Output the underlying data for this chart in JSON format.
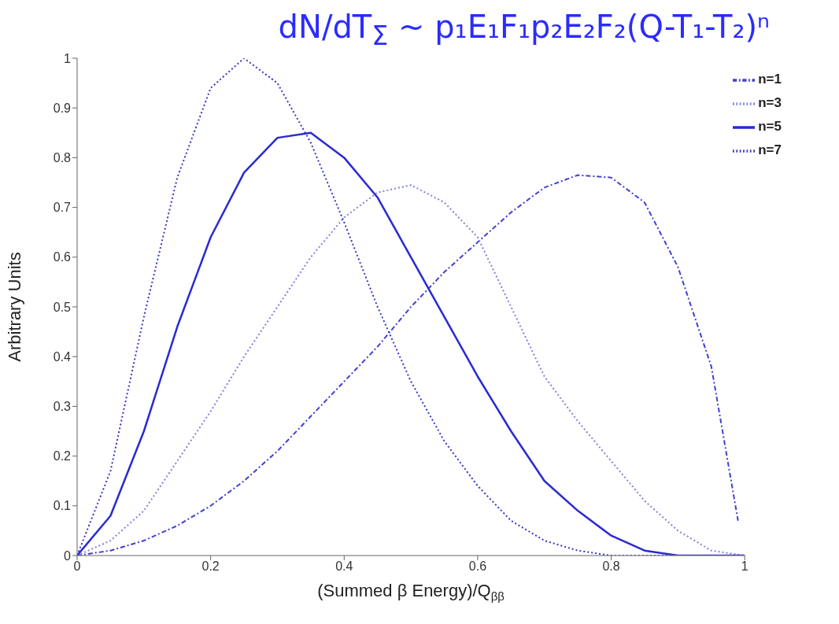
{
  "chart_data": {
    "type": "line",
    "title": "dN/dT$_{Σ}$ ~ p₁E₁F₁p₂E₂F₂(Q-T₁-T₂)ⁿ",
    "xlabel": "(Summed β Energy)/Q$_{ββ}$",
    "ylabel": "Arbitrary Units",
    "x": [
      0,
      0.05,
      0.1,
      0.15,
      0.2,
      0.25,
      0.3,
      0.35,
      0.4,
      0.45,
      0.5,
      0.55,
      0.6,
      0.65,
      0.7,
      0.75,
      0.8,
      0.85,
      0.9,
      0.95,
      1
    ],
    "series": [
      {
        "name": "n=1",
        "color": "#4040d0",
        "line_style": "dashed",
        "x": [
          0,
          0.05,
          0.1,
          0.15,
          0.2,
          0.25,
          0.3,
          0.35,
          0.4,
          0.45,
          0.5,
          0.55,
          0.6,
          0.65,
          0.7,
          0.75,
          0.8,
          0.85,
          0.9,
          0.95,
          0.99
        ],
        "values": [
          0,
          0.01,
          0.03,
          0.06,
          0.1,
          0.15,
          0.21,
          0.28,
          0.35,
          0.42,
          0.5,
          0.57,
          0.63,
          0.69,
          0.74,
          0.765,
          0.76,
          0.71,
          0.58,
          0.38,
          0.07
        ]
      },
      {
        "name": "n=3",
        "color": "#8080e0",
        "line_style": "dotted",
        "values": [
          0,
          0.03,
          0.09,
          0.19,
          0.29,
          0.4,
          0.5,
          0.6,
          0.68,
          0.73,
          0.745,
          0.71,
          0.64,
          0.5,
          0.36,
          0.27,
          0.19,
          0.11,
          0.05,
          0.01,
          0
        ]
      },
      {
        "name": "n=5",
        "color": "#2a2ad0",
        "line_style": "solid",
        "values": [
          0,
          0.08,
          0.25,
          0.46,
          0.64,
          0.77,
          0.84,
          0.85,
          0.8,
          0.72,
          0.6,
          0.48,
          0.36,
          0.25,
          0.15,
          0.09,
          0.04,
          0.01,
          0,
          0,
          0
        ]
      },
      {
        "name": "n=7",
        "color": "#3535c8",
        "line_style": "dotted",
        "values": [
          0,
          0.17,
          0.48,
          0.76,
          0.94,
          1,
          0.95,
          0.83,
          0.67,
          0.5,
          0.35,
          0.23,
          0.14,
          0.07,
          0.03,
          0.01,
          0,
          0,
          0,
          0,
          0
        ]
      }
    ],
    "xlim": [
      0,
      1
    ],
    "xticks": [
      0,
      0.2,
      0.4,
      0.6,
      0.8,
      1
    ],
    "ylim": [
      0,
      1
    ],
    "yticks": [
      0,
      0.1,
      0.2,
      0.3,
      0.4,
      0.5,
      0.6,
      0.7,
      0.8,
      0.9,
      1
    ],
    "grid": false,
    "legend": "top right",
    "marker": "none"
  }
}
